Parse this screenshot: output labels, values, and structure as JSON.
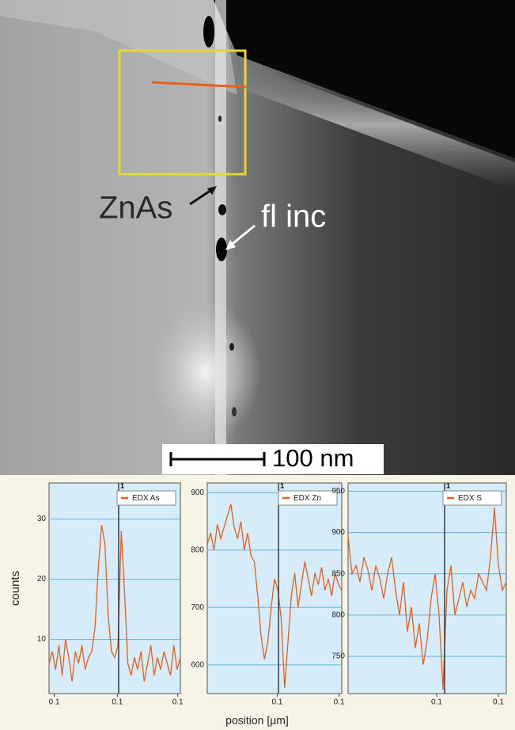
{
  "image": {
    "annotations": [
      "ZnAs",
      "fl inc"
    ],
    "scale_bar": "100 nm"
  },
  "chart_data": [
    {
      "type": "line",
      "ylabel": "counts",
      "legend": "upper right",
      "grid": true,
      "x": [
        0.05,
        0.0525,
        0.055,
        0.0575,
        0.06,
        0.0625,
        0.065,
        0.0675,
        0.07,
        0.0725,
        0.075,
        0.0775,
        0.08,
        0.0825,
        0.085,
        0.0875,
        0.09,
        0.0925,
        0.095,
        0.0975,
        0.1,
        0.1025,
        0.105,
        0.1075,
        0.11,
        0.1125,
        0.115,
        0.1175,
        0.12,
        0.1225,
        0.125,
        0.1275,
        0.13,
        0.1325,
        0.135,
        0.1375,
        0.14,
        0.1425,
        0.145,
        0.1475,
        0.15
      ],
      "series": [
        {
          "name": "EDX As",
          "color": "#e8601c",
          "values": [
            6,
            8,
            5,
            9,
            4,
            10,
            7,
            3,
            8,
            6,
            9,
            5,
            7,
            8,
            12,
            22,
            29,
            26,
            14,
            8,
            7,
            9,
            28,
            18,
            6,
            4,
            7,
            5,
            8,
            3,
            6,
            9,
            4,
            7,
            5,
            8,
            6,
            4,
            9,
            5,
            7
          ]
        }
      ],
      "xlim": [
        0.05,
        0.15
      ],
      "xticks": [
        {
          "value": 0.054,
          "label": "0.1"
        },
        {
          "value": 0.102,
          "label": "0.1"
        },
        {
          "value": 0.148,
          "label": "0.1"
        }
      ],
      "ylim": [
        1,
        36
      ],
      "yticks": [
        10,
        20,
        30
      ],
      "marker": {
        "x": 0.103,
        "label": "1"
      }
    },
    {
      "type": "line",
      "xlabel": "position [µm]",
      "legend": "upper right",
      "grid": true,
      "x": [
        0.05,
        0.0525,
        0.055,
        0.0575,
        0.06,
        0.0625,
        0.065,
        0.0675,
        0.07,
        0.0725,
        0.075,
        0.0775,
        0.08,
        0.0825,
        0.085,
        0.0875,
        0.09,
        0.0925,
        0.095,
        0.0975,
        0.1,
        0.1025,
        0.105,
        0.1075,
        0.11,
        0.1125,
        0.115,
        0.1175,
        0.12,
        0.1225,
        0.125,
        0.1275,
        0.13,
        0.1325,
        0.135,
        0.1375,
        0.14,
        0.1425,
        0.145,
        0.1475,
        0.15
      ],
      "series": [
        {
          "name": "EDX Zn",
          "color": "#e8601c",
          "values": [
            810,
            830,
            800,
            845,
            820,
            840,
            860,
            880,
            840,
            820,
            850,
            800,
            830,
            790,
            780,
            720,
            650,
            610,
            640,
            700,
            750,
            730,
            680,
            560,
            640,
            720,
            760,
            700,
            740,
            780,
            750,
            720,
            760,
            740,
            770,
            730,
            750,
            720,
            760,
            740,
            730
          ]
        }
      ],
      "xlim": [
        0.05,
        0.15
      ],
      "xticks": [
        {
          "value": 0.102,
          "label": "0.1"
        },
        {
          "value": 0.148,
          "label": "0.1"
        }
      ],
      "ylim": [
        550,
        917
      ],
      "yticks": [
        600,
        700,
        800,
        900
      ],
      "marker": {
        "x": 0.103,
        "label": "1"
      }
    },
    {
      "type": "line",
      "legend": "upper right",
      "grid": true,
      "x": [
        0.05,
        0.0525,
        0.055,
        0.0575,
        0.06,
        0.0625,
        0.065,
        0.0675,
        0.07,
        0.0725,
        0.075,
        0.0775,
        0.08,
        0.0825,
        0.085,
        0.0875,
        0.09,
        0.0925,
        0.095,
        0.0975,
        0.1,
        0.1025,
        0.105,
        0.1075,
        0.11,
        0.1125,
        0.115,
        0.1175,
        0.12,
        0.1225,
        0.125,
        0.1275,
        0.13,
        0.1325,
        0.135,
        0.1375,
        0.14,
        0.1425,
        0.145,
        0.1475,
        0.15
      ],
      "series": [
        {
          "name": "EDX S",
          "color": "#e8601c",
          "values": [
            895,
            850,
            860,
            840,
            870,
            855,
            830,
            860,
            845,
            820,
            850,
            870,
            830,
            800,
            840,
            780,
            810,
            760,
            790,
            740,
            770,
            820,
            850,
            800,
            710,
            830,
            860,
            800,
            820,
            840,
            810,
            830,
            820,
            850,
            840,
            830,
            870,
            930,
            860,
            830,
            840
          ]
        }
      ],
      "xlim": [
        0.05,
        0.15
      ],
      "xticks": [
        {
          "value": 0.106,
          "label": "0.1"
        },
        {
          "value": 0.145,
          "label": "0.1"
        }
      ],
      "ylim": [
        705,
        960
      ],
      "yticks": [
        750,
        800,
        850,
        900,
        950
      ],
      "marker": {
        "x": 0.111,
        "label": "1"
      }
    }
  ]
}
